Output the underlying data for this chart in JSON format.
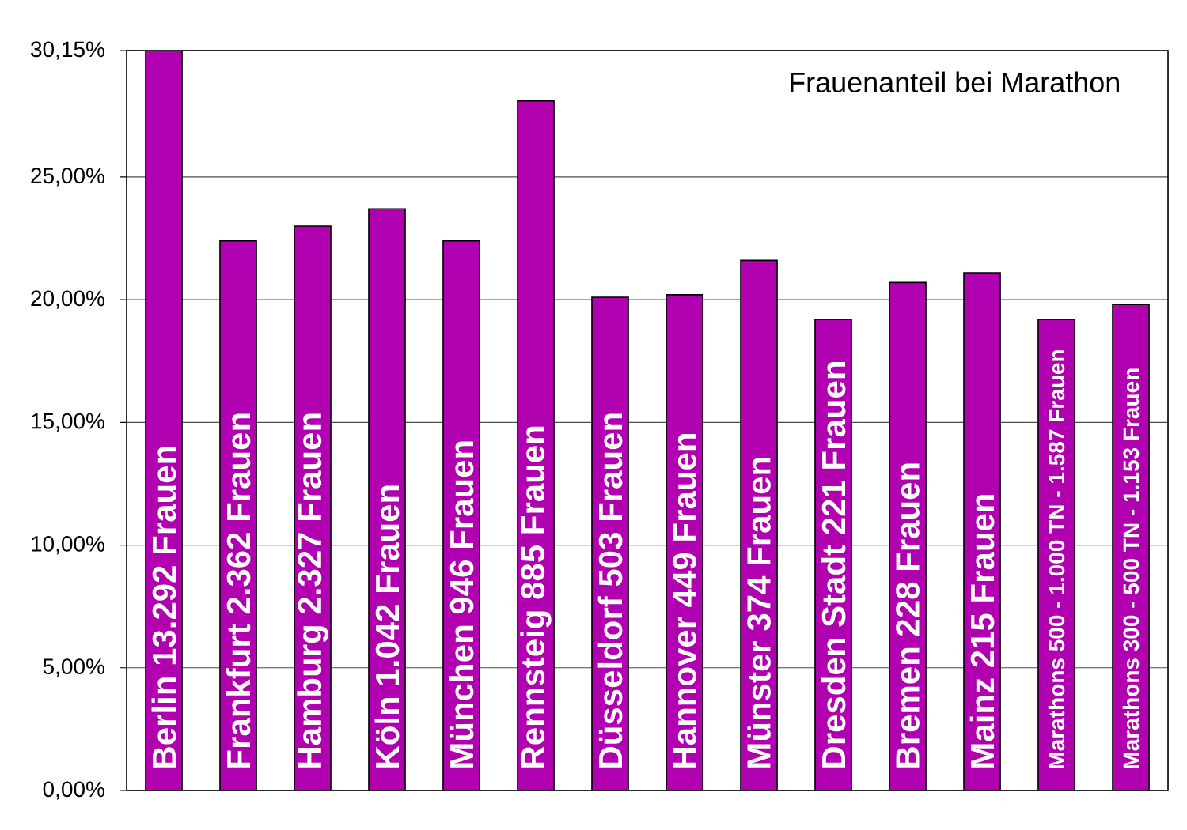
{
  "chart_data": {
    "type": "bar",
    "title": "Frauenanteil bei Marathon",
    "categories": [
      "Berlin 13.292 Frauen",
      "Frankfurt 2.362 Frauen",
      "Hamburg 2.327 Frauen",
      "Köln 1.042 Frauen",
      "München 946 Frauen",
      "Rennsteig 885 Frauen",
      "Düsseldorf 503 Frauen",
      "Hannover 449 Frauen",
      "Münster 374 Frauen",
      "Dresden Stadt 221 Frauen",
      "Bremen 228 Frauen",
      "Mainz 215 Frauen",
      "Marathons 500 - 1.000 TN - 1.587 Frauen",
      "Marathons 300 - 500 TN - 1.153 Frauen"
    ],
    "values": [
      30.15,
      22.4,
      23.0,
      23.7,
      22.4,
      28.1,
      20.1,
      20.2,
      21.6,
      19.2,
      20.7,
      21.1,
      19.2,
      19.8
    ],
    "color": "#b000b0",
    "ylim": [
      0,
      30.15
    ],
    "yticks": [
      {
        "value": 0,
        "label": "0,00%"
      },
      {
        "value": 5,
        "label": "5,00%"
      },
      {
        "value": 10,
        "label": "10,00%"
      },
      {
        "value": 15,
        "label": "15,00%"
      },
      {
        "value": 20,
        "label": "20,00%"
      },
      {
        "value": 25,
        "label": "25,00%"
      },
      {
        "value": 30.15,
        "label": "30,15%"
      }
    ],
    "grid": "y"
  }
}
